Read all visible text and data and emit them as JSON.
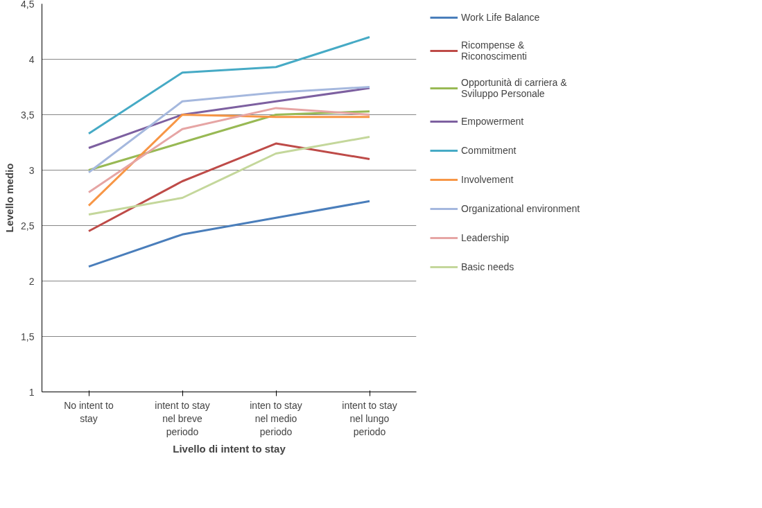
{
  "chart_data": {
    "type": "line",
    "xlabel": "Livello di intent to stay",
    "ylabel": "Levello medio",
    "categories": [
      "No intent to stay",
      "intent to stay nel breve periodo",
      "inten to stay nel medio periodo",
      "intent to stay nel lungo periodo"
    ],
    "ylim": [
      1,
      4.5
    ],
    "yticks": [
      1,
      {
        "value": 1.5,
        "label": "1,5"
      },
      2,
      {
        "value": 2.5,
        "label": "2,5"
      },
      3,
      {
        "value": 3.5,
        "label": "3,5"
      },
      4,
      {
        "value": 4.5,
        "label": "4,5"
      }
    ],
    "grid": "y",
    "legend": "right",
    "marker": "none",
    "line_style": "solid",
    "series": [
      {
        "name": "Work Life Balance",
        "color": "#4a7ebb",
        "values": [
          2.13,
          2.42,
          2.57,
          2.72
        ]
      },
      {
        "name": "Ricompense & Riconoscimenti",
        "color": "#be4b48",
        "values": [
          2.45,
          2.9,
          3.24,
          3.1
        ]
      },
      {
        "name": "Opportunità di carriera & Sviluppo Personale",
        "color": "#98b954",
        "values": [
          3.0,
          3.25,
          3.5,
          3.53
        ]
      },
      {
        "name": "Empowerment",
        "color": "#7d60a0",
        "values": [
          3.2,
          3.5,
          3.62,
          3.74
        ]
      },
      {
        "name": "Commitment",
        "color": "#46aac5",
        "values": [
          3.33,
          3.88,
          3.93,
          4.2
        ]
      },
      {
        "name": "Involvement",
        "color": "#f79646",
        "values": [
          2.68,
          3.5,
          3.48,
          3.48
        ]
      },
      {
        "name": "Organizational environment",
        "color": "#a5b8de",
        "values": [
          2.98,
          3.62,
          3.7,
          3.75
        ]
      },
      {
        "name": "Leadership",
        "color": "#e6a5a4",
        "values": [
          2.8,
          3.37,
          3.56,
          3.5
        ]
      },
      {
        "name": "Basic needs",
        "color": "#c4d79b",
        "values": [
          2.6,
          2.75,
          3.15,
          3.3
        ]
      }
    ]
  }
}
